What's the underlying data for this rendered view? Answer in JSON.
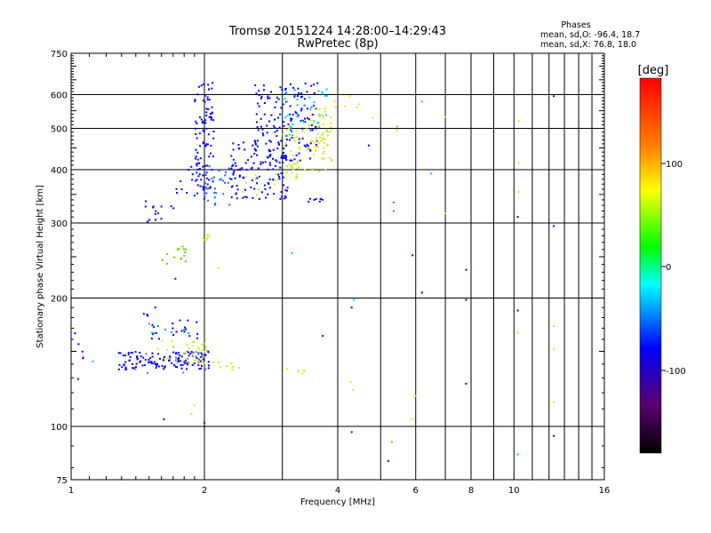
{
  "chart_data": {
    "type": "scatter",
    "title": "Tromsø 20151224 14:28:00–14:29:43",
    "subtitle": "RwPretec (8p)",
    "xlabel": "Frequency [MHz]",
    "ylabel": "Stationary phase Virtual Height [km]",
    "x_scale": "log",
    "y_scale": "log",
    "xlim": [
      1,
      16
    ],
    "ylim": [
      75,
      750
    ],
    "x_ticks": [
      "1",
      "2",
      "4",
      "6",
      "8",
      "10",
      "16"
    ],
    "y_ticks": [
      "75",
      "100",
      "200",
      "300",
      "400",
      "500",
      "600",
      "750"
    ],
    "grid": true,
    "stats": {
      "heading": "Phases",
      "line_o": "mean, sd,O: -96.4, 18.7",
      "line_x": "mean, sd,X:  76.8, 18.0"
    },
    "colorbar": {
      "unit": "[deg]",
      "ticks": [
        "100",
        "0",
        "-100"
      ],
      "colormap": "rainbow",
      "colors": [
        "#000000",
        "#5b006e",
        "#0000ff",
        "#00ffff",
        "#00ff00",
        "#ffff00",
        "#ff8000",
        "#ff0000"
      ]
    },
    "clusters": [
      {
        "color": "#0000ff",
        "x": [
          1.02,
          1.08
        ],
        "y": [
          120,
          170
        ],
        "n": 6
      },
      {
        "color": "#0000ff",
        "x": [
          1.28,
          2.05
        ],
        "y": [
          136,
          150
        ],
        "n": 130
      },
      {
        "color": "#8060ff",
        "x": [
          1.28,
          1.95
        ],
        "y": [
          132,
          150
        ],
        "n": 12
      },
      {
        "color": "#c8f020",
        "x": [
          1.55,
          2.05
        ],
        "y": [
          140,
          160
        ],
        "n": 40
      },
      {
        "color": "#0000ff",
        "x": [
          1.5,
          1.95
        ],
        "y": [
          160,
          178
        ],
        "n": 20
      },
      {
        "color": "#00a0ff",
        "x": [
          1.5,
          1.9
        ],
        "y": [
          165,
          176
        ],
        "n": 8
      },
      {
        "color": "#c8f020",
        "x": [
          2.0,
          2.4
        ],
        "y": [
          136,
          142
        ],
        "n": 10
      },
      {
        "color": "#0000ff",
        "x": [
          1.42,
          1.5
        ],
        "y": [
          175,
          185
        ],
        "n": 3
      },
      {
        "color": "#60d000",
        "x": [
          1.6,
          1.85
        ],
        "y": [
          240,
          265
        ],
        "n": 14
      },
      {
        "color": "#c8f020",
        "x": [
          1.95,
          2.1
        ],
        "y": [
          270,
          285
        ],
        "n": 6
      },
      {
        "color": "#0000ff",
        "x": [
          1.45,
          1.72
        ],
        "y": [
          300,
          345
        ],
        "n": 14
      },
      {
        "color": "#0000ff",
        "x": [
          1.7,
          2.0
        ],
        "y": [
          340,
          410
        ],
        "n": 18
      },
      {
        "color": "#0000ff",
        "x": [
          1.9,
          2.1
        ],
        "y": [
          360,
          640
        ],
        "n": 90
      },
      {
        "color": "#2060ff",
        "x": [
          2.0,
          2.3
        ],
        "y": [
          330,
          410
        ],
        "n": 30
      },
      {
        "color": "#0000ff",
        "x": [
          2.3,
          3.1
        ],
        "y": [
          340,
          470
        ],
        "n": 130
      },
      {
        "color": "#0000ff",
        "x": [
          2.6,
          3.6
        ],
        "y": [
          420,
          640
        ],
        "n": 140
      },
      {
        "color": "#00c8ff",
        "x": [
          3.0,
          3.8
        ],
        "y": [
          480,
          620
        ],
        "n": 40
      },
      {
        "color": "#c8f020",
        "x": [
          3.0,
          3.9
        ],
        "y": [
          380,
          520
        ],
        "n": 80
      },
      {
        "color": "#f0e000",
        "x": [
          3.4,
          3.9
        ],
        "y": [
          430,
          560
        ],
        "n": 25
      },
      {
        "color": "#c8f020",
        "x": [
          2.4,
          3.0
        ],
        "y": [
          345,
          395
        ],
        "n": 12
      },
      {
        "color": "#0000ff",
        "x": [
          3.4,
          3.7
        ],
        "y": [
          336,
          342
        ],
        "n": 8
      },
      {
        "color": "#c8f020",
        "x": [
          2.95,
          3.4
        ],
        "y": [
          130,
          140
        ],
        "n": 6
      },
      {
        "color": "#f0e000",
        "x": [
          3.9,
          4.5
        ],
        "y": [
          560,
          600
        ],
        "n": 6
      }
    ],
    "scattered_points": [
      {
        "x": 1.12,
        "y": 142,
        "color": "#00e060"
      },
      {
        "x": 1.62,
        "y": 104,
        "color": "#0000ff"
      },
      {
        "x": 1.87,
        "y": 107,
        "color": "#f0e000"
      },
      {
        "x": 2.0,
        "y": 102,
        "color": "#0000ff"
      },
      {
        "x": 1.9,
        "y": 112,
        "color": "#f0e000"
      },
      {
        "x": 1.55,
        "y": 190,
        "color": "#0000ff"
      },
      {
        "x": 1.72,
        "y": 222,
        "color": "#0000ff"
      },
      {
        "x": 2.15,
        "y": 235,
        "color": "#c8f020"
      },
      {
        "x": 3.15,
        "y": 255,
        "color": "#00c8ff"
      },
      {
        "x": 3.7,
        "y": 163,
        "color": "#0000ff"
      },
      {
        "x": 4.35,
        "y": 198,
        "color": "#00c8ff"
      },
      {
        "x": 4.3,
        "y": 190,
        "color": "#0000ff"
      },
      {
        "x": 4.3,
        "y": 97,
        "color": "#0000ff"
      },
      {
        "x": 4.28,
        "y": 127,
        "color": "#f0e000"
      },
      {
        "x": 4.33,
        "y": 122,
        "color": "#f0e000"
      },
      {
        "x": 4.7,
        "y": 456,
        "color": "#0000ff"
      },
      {
        "x": 5.2,
        "y": 83,
        "color": "#0000ff"
      },
      {
        "x": 5.3,
        "y": 92,
        "color": "#ff8000"
      },
      {
        "x": 5.35,
        "y": 320,
        "color": "#ff4040"
      },
      {
        "x": 5.35,
        "y": 335,
        "color": "#ff4040"
      },
      {
        "x": 5.45,
        "y": 505,
        "color": "#ff8000"
      },
      {
        "x": 5.45,
        "y": 495,
        "color": "#f0e000"
      },
      {
        "x": 4.8,
        "y": 530,
        "color": "#f0e000"
      },
      {
        "x": 5.9,
        "y": 104,
        "color": "#f0e000"
      },
      {
        "x": 5.9,
        "y": 252,
        "color": "#0000ff"
      },
      {
        "x": 6.0,
        "y": 118,
        "color": "#f0e000"
      },
      {
        "x": 6.2,
        "y": 578,
        "color": "#00c8ff"
      },
      {
        "x": 6.2,
        "y": 206,
        "color": "#0000ff"
      },
      {
        "x": 6.5,
        "y": 392,
        "color": "#00c8ff"
      },
      {
        "x": 7.0,
        "y": 316,
        "color": "#f0e000"
      },
      {
        "x": 7.0,
        "y": 532,
        "color": "#f0e000"
      },
      {
        "x": 7.8,
        "y": 233,
        "color": "#0000ff"
      },
      {
        "x": 7.8,
        "y": 198,
        "color": "#0000ff"
      },
      {
        "x": 7.8,
        "y": 126,
        "color": "#0000ff"
      },
      {
        "x": 10.2,
        "y": 86,
        "color": "#00c8ff"
      },
      {
        "x": 10.2,
        "y": 187,
        "color": "#0000ff"
      },
      {
        "x": 10.2,
        "y": 166,
        "color": "#f0e000"
      },
      {
        "x": 10.2,
        "y": 310,
        "color": "#0000ff"
      },
      {
        "x": 10.25,
        "y": 355,
        "color": "#f0e000"
      },
      {
        "x": 10.25,
        "y": 415,
        "color": "#f0e000"
      },
      {
        "x": 10.25,
        "y": 520,
        "color": "#f0e000"
      },
      {
        "x": 12.3,
        "y": 595,
        "color": "#0000ff"
      },
      {
        "x": 12.3,
        "y": 295,
        "color": "#0000ff"
      },
      {
        "x": 12.3,
        "y": 172,
        "color": "#f0e000"
      },
      {
        "x": 12.3,
        "y": 152,
        "color": "#f0e000"
      },
      {
        "x": 12.3,
        "y": 114,
        "color": "#f0e000"
      },
      {
        "x": 12.3,
        "y": 95,
        "color": "#0000ff"
      }
    ]
  }
}
